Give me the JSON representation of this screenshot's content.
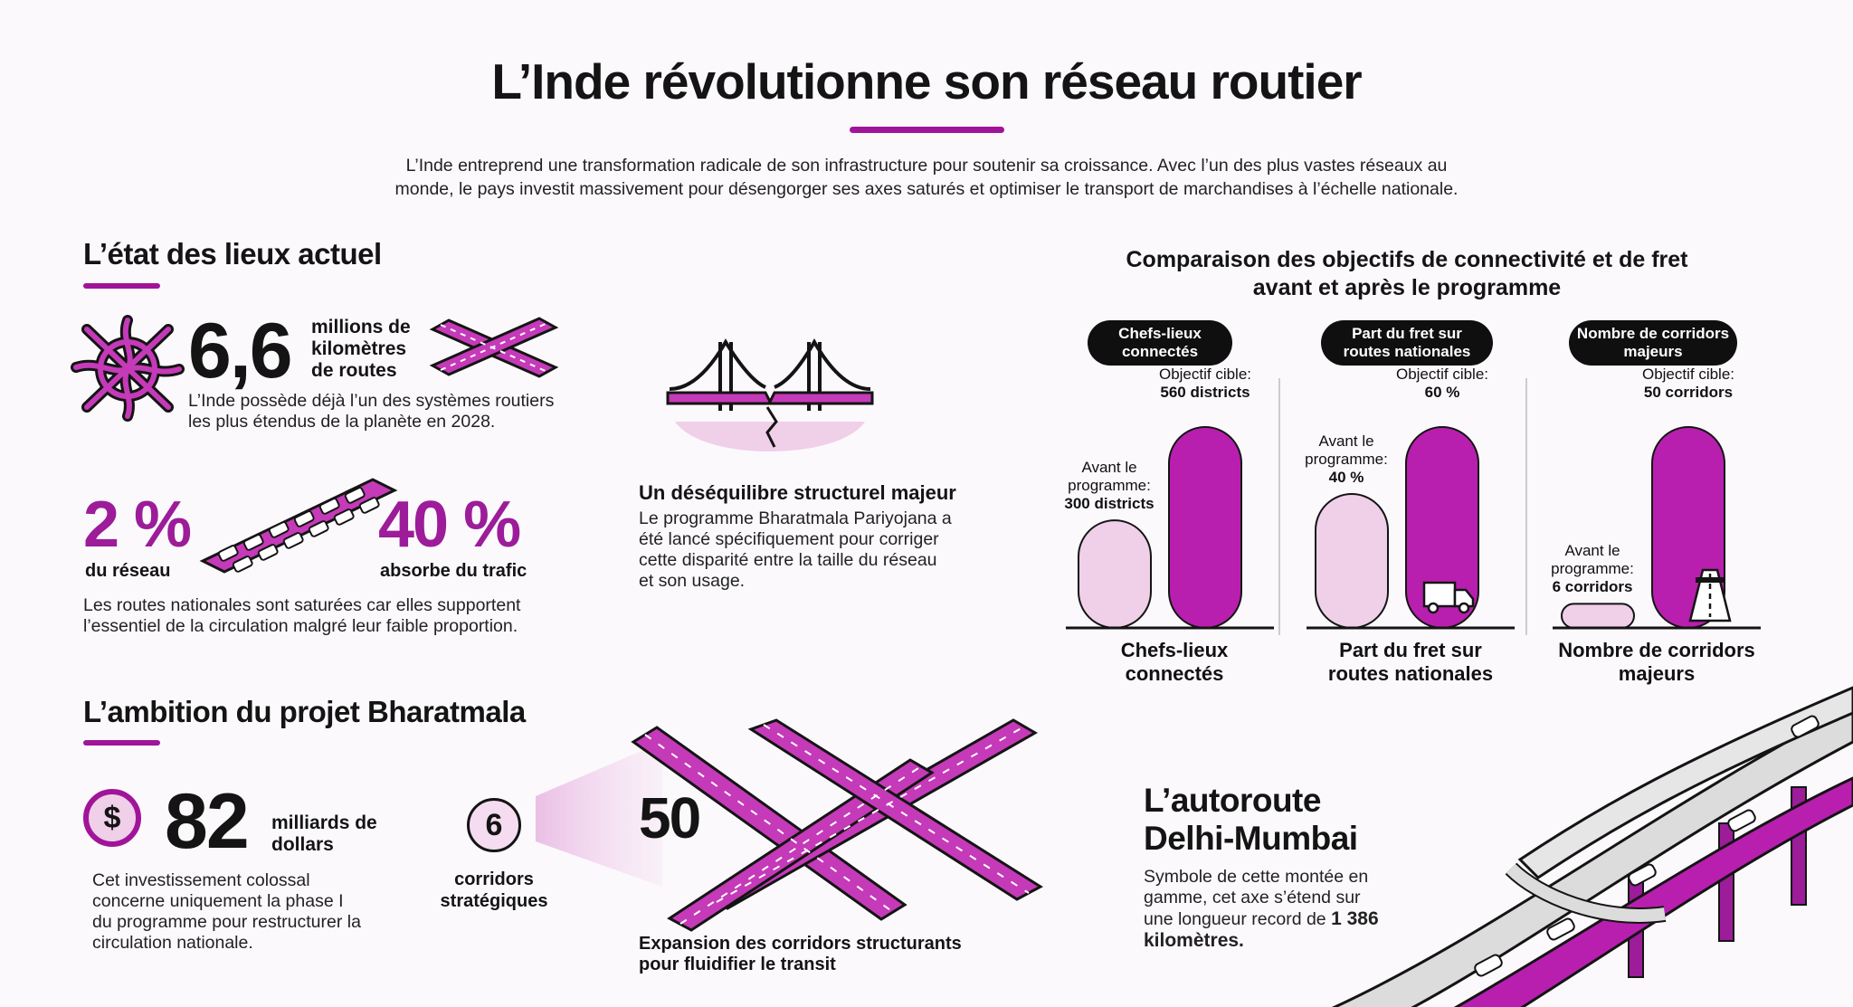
{
  "header": {
    "title": "L’Inde révolutionne son réseau routier",
    "intro": "L’Inde entreprend une transformation radicale de son infrastructure pour soutenir sa croissance. Avec l’un des plus vastes réseaux au monde, le pays investit massivement pour désengorger ses axes saturés et optimiser le transport de marchandises à l’échelle nationale."
  },
  "state": {
    "heading": "L’état des lieux actuel",
    "network_value": "6,6",
    "network_unit": "millions de kilomètres de routes",
    "network_desc": "L’Inde possède déjà l’un des systèmes routiers les plus étendus de la planète en 2028.",
    "share_value": "2 %",
    "share_label": "du réseau",
    "traffic_value": "40 %",
    "traffic_label": "absorbe du trafic",
    "saturation_desc": "Les routes nationales sont saturées car elles supportent l’essentiel de la circulation malgré leur faible proportion.",
    "imbalance_title": "Un déséquilibre structurel majeur",
    "imbalance_desc": "Le programme Bharatmala Pariyojana a été lancé spécifiquement pour corriger cette disparité entre la taille du réseau et son usage."
  },
  "ambition": {
    "heading": "L’ambition du projet Bharatmala",
    "currency_symbol": "$",
    "investment_value": "82",
    "investment_unit": "milliards de dollars",
    "investment_desc": "Cet investissement colossal concerne uniquement la phase I du programme pour restructurer la circulation nationale.",
    "corridors_count": "6",
    "corridors_label": "corridors stratégiques",
    "expansion_value": "50",
    "expansion_desc": "Expansion des corridors structurants pour fluidifier le transit"
  },
  "expressway": {
    "title": "L’autoroute Delhi-Mumbai",
    "desc": "Symbole de cette montée en gamme, cet axe s’étend sur une longueur record de",
    "length": "1 386 kilomètres."
  },
  "colors": {
    "accent": "#a0149a",
    "bar_after": "#b81fae",
    "bar_before": "#f0cfe8",
    "ink": "#141414"
  },
  "chart_data": {
    "type": "bar",
    "title": "Comparaison des objectifs de connectivité et de fret avant et après le programme",
    "panels": [
      {
        "pill": "Chefs-lieux connectés",
        "category": "Chefs-lieux connectés",
        "before_label": "Avant le programme:",
        "before_value_label": "300 districts",
        "after_label": "Objectif cible:",
        "after_value_label": "560 districts",
        "before": 300,
        "after": 560,
        "unit": "districts",
        "icon": "none"
      },
      {
        "pill": "Part du fret sur routes nationales",
        "category": "Part du fret sur routes nationales",
        "before_label": "Avant le programme:",
        "before_value_label": "40 %",
        "after_label": "Objectif cible:",
        "after_value_label": "60 %",
        "before": 40,
        "after": 60,
        "unit": "%",
        "icon": "truck-icon"
      },
      {
        "pill": "Nombre de corridors majeurs",
        "category": "Nombre de corridors majeurs",
        "before_label": "Avant le programme:",
        "before_value_label": "6 corridors",
        "after_label": "Objectif cible:",
        "after_value_label": "50 corridors",
        "before": 6,
        "after": 50,
        "unit": "corridors",
        "icon": "highway-icon"
      }
    ]
  }
}
